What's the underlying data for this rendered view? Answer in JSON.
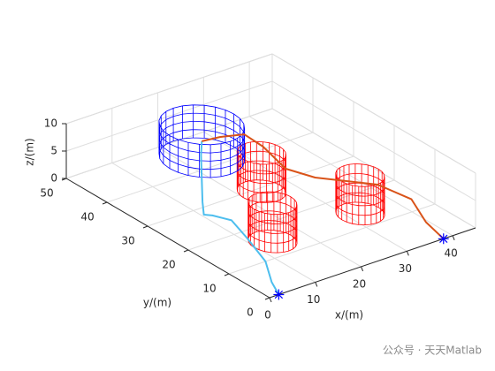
{
  "chart_data": {
    "type": "line3d",
    "xlabel": "x/(m)",
    "ylabel": "y/(m)",
    "zlabel": "z/(m)",
    "xlim": [
      0,
      45
    ],
    "ylim": [
      0,
      50
    ],
    "zlim": [
      0,
      10
    ],
    "xticks": [
      0,
      10,
      20,
      30,
      40
    ],
    "yticks": [
      0,
      10,
      20,
      30,
      40,
      50
    ],
    "zticks": [
      0,
      5,
      10
    ],
    "grid": true,
    "start_marker_color": "#0000ff",
    "series": [
      {
        "color": "#4dbeee",
        "x": [
          2,
          4,
          8,
          11,
          13,
          11.5,
          10.5,
          12,
          14.5,
          17,
          18.5
        ],
        "y": [
          0,
          4,
          10,
          18,
          24,
          27,
          28,
          30,
          33,
          36,
          37.5
        ],
        "z": [
          0,
          0,
          0,
          0,
          0,
          0,
          0,
          1,
          3,
          5.5,
          7
        ]
      },
      {
        "color": "#d95319",
        "x": [
          38,
          39.5,
          39,
          36.5,
          29.5,
          27.5,
          27,
          26,
          22,
          18.5
        ],
        "y": [
          0,
          6,
          9,
          14.5,
          22,
          27,
          32,
          35.5,
          37,
          37.5
        ],
        "z": [
          0,
          0,
          3,
          4,
          4,
          4,
          6,
          7,
          7,
          7
        ]
      }
    ],
    "obstacles": {
      "color": "#ff0000",
      "items": [
        {
          "x": 24,
          "y": 29,
          "r": 4,
          "z": [
            0,
            7
          ]
        },
        {
          "x": 13.7,
          "y": 14.7,
          "r": 4,
          "z": [
            0,
            7
          ]
        },
        {
          "x": 32.4,
          "y": 14.2,
          "r": 4,
          "z": [
            0,
            7
          ]
        }
      ]
    },
    "target": {
      "color": "#0000ff",
      "x": 18.5,
      "y": 37.5,
      "r": 7,
      "z": [
        4,
        10
      ]
    }
  },
  "watermark": "公众号 · 天天Matlab"
}
